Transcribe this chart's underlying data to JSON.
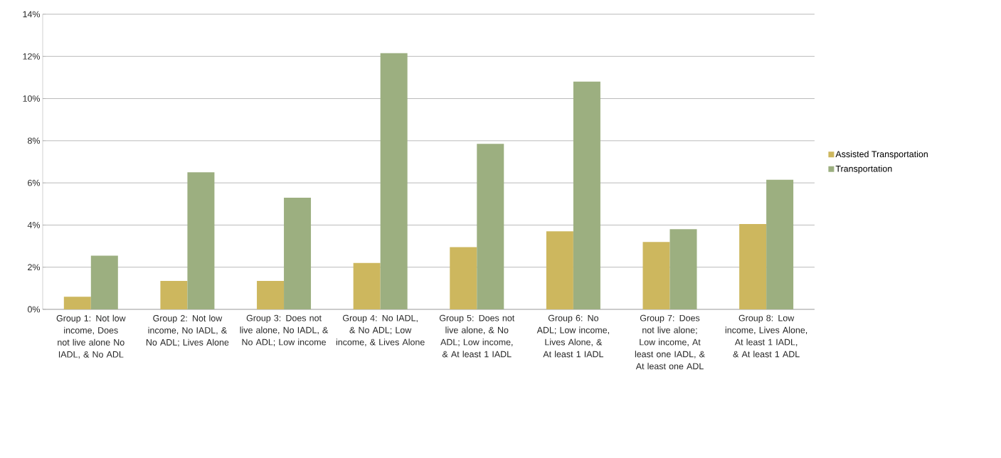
{
  "chart_data": {
    "type": "bar",
    "categories": [
      "Group 1: Not low income, Does not live alone No IADL, & No ADL",
      "Group 2: Not low income, No IADL, & No ADL; Lives Alone",
      "Group 3: Does not live alone, No IADL, & No ADL; Low income",
      "Group 4: No IADL, & No ADL; Low income, & Lives Alone",
      "Group 5: Does not live alone, & No ADL; Low income, & At least 1 IADL",
      "Group 6: No ADL; Low income, Lives Alone, & At least 1 IADL",
      "Group 7: Does not live alone; Low income, At least one IADL, & At least one ADL",
      "Group 8: Low income, Lives Alone, At least 1 IADL, & At least 1 ADL"
    ],
    "series": [
      {
        "name": "Assisted Transportation",
        "color": "#cdb75e",
        "values": [
          0.6,
          1.35,
          1.35,
          2.2,
          2.95,
          3.7,
          3.2,
          4.05
        ]
      },
      {
        "name": "Transportation",
        "color": "#9caf80",
        "values": [
          2.55,
          6.5,
          5.3,
          12.15,
          7.85,
          10.8,
          3.8,
          6.15
        ]
      }
    ],
    "ylim": [
      0,
      14
    ],
    "yticks": [
      {
        "value": 0,
        "label": "0%"
      },
      {
        "value": 2,
        "label": "2%"
      },
      {
        "value": 4,
        "label": "4%"
      },
      {
        "value": 6,
        "label": "6%"
      },
      {
        "value": 8,
        "label": "8%"
      },
      {
        "value": 10,
        "label": "10%"
      },
      {
        "value": 12,
        "label": "12%"
      },
      {
        "value": 14,
        "label": "14%"
      }
    ],
    "grid": "y",
    "legend": "right"
  }
}
